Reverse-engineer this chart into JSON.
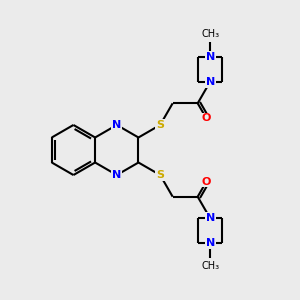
{
  "bg_color": "#ebebeb",
  "bond_color": "#000000",
  "N_color": "#0000ff",
  "O_color": "#ff0000",
  "S_color": "#ccaa00",
  "line_width": 1.5,
  "font_size_atom": 8,
  "font_size_methyl": 7,
  "fig_width": 3.0,
  "fig_height": 3.0,
  "xlim": [
    0,
    10
  ],
  "ylim": [
    0,
    10
  ]
}
